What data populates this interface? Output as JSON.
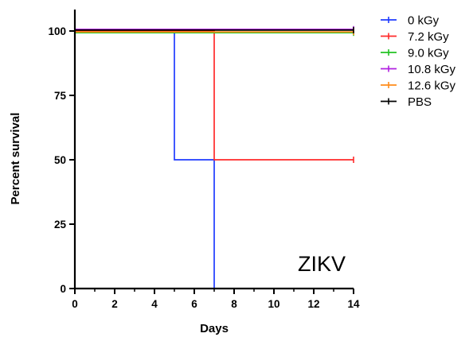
{
  "chart_data": {
    "type": "line",
    "step": true,
    "xlabel": "Days",
    "ylabel": "Percent survival",
    "xlim": [
      0,
      14
    ],
    "ylim": [
      0,
      100
    ],
    "xticks": [
      "0",
      "2",
      "4",
      "6",
      "8",
      "10",
      "12",
      "14"
    ],
    "yticks": [
      "0",
      "25",
      "50",
      "75",
      "100"
    ],
    "grid": false,
    "legend_position": "top-right",
    "annotation": "ZIKV",
    "series": [
      {
        "name": "0 kGy",
        "color": "#1f3bff",
        "x": [
          0,
          5,
          5,
          7,
          7
        ],
        "y": [
          100,
          100,
          50,
          50,
          0
        ]
      },
      {
        "name": "7.2 kGy",
        "color": "#ff2a2a",
        "x": [
          0,
          7,
          7,
          14
        ],
        "y": [
          100,
          100,
          50,
          50
        ]
      },
      {
        "name": "9.0 kGy",
        "color": "#22c322",
        "x": [
          0,
          14
        ],
        "y": [
          100,
          100
        ]
      },
      {
        "name": "10.8 kGy",
        "color": "#b020e0",
        "x": [
          0,
          14
        ],
        "y": [
          100,
          100
        ]
      },
      {
        "name": "12.6 kGy",
        "color": "#ff8c1a",
        "x": [
          0,
          14
        ],
        "y": [
          100,
          100
        ]
      },
      {
        "name": "PBS",
        "color": "#000000",
        "x": [
          0,
          14
        ],
        "y": [
          100,
          100
        ]
      }
    ]
  }
}
